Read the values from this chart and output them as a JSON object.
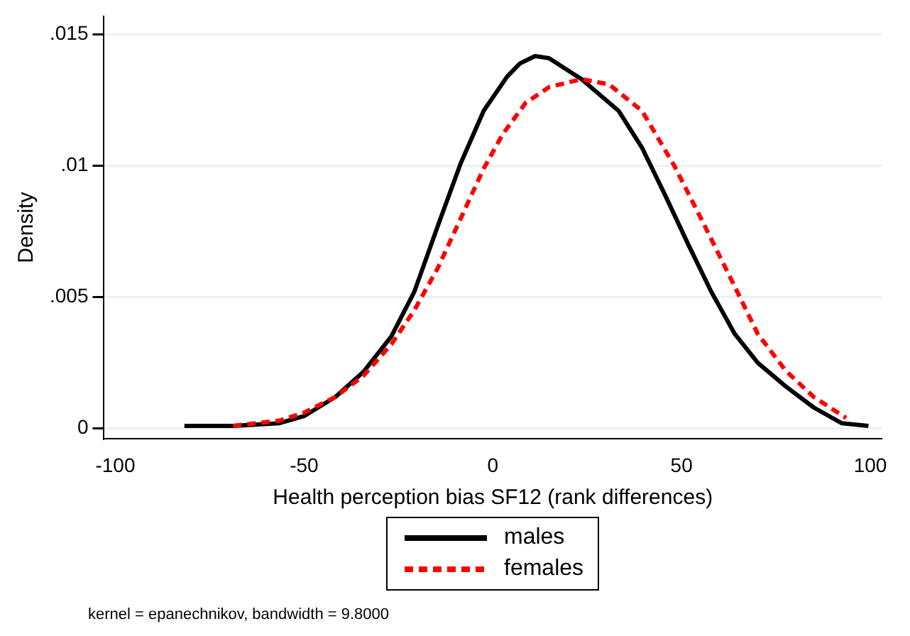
{
  "chart_data": {
    "type": "line",
    "xlabel": "Health perception bias SF12 (rank differences)",
    "ylabel": "Density",
    "xlim": [
      -103,
      103
    ],
    "xticks": [
      -100,
      -50,
      0,
      50,
      100
    ],
    "ylim": [
      -0.0004,
      0.0157
    ],
    "yticks": [
      {
        "value": 0,
        "label": "0"
      },
      {
        "value": 0.005,
        "label": ".005"
      },
      {
        "value": 0.01,
        "label": ".01"
      },
      {
        "value": 0.015,
        "label": ".015"
      }
    ],
    "grid": "y",
    "legend": "bottom",
    "marker": "none",
    "series": [
      {
        "name": "males",
        "color": "#000000",
        "line_style": "solid",
        "x": [
          -81.7,
          -68.8,
          -56.5,
          -50,
          -41.7,
          -34.3,
          -26.9,
          -20.8,
          -14.6,
          -8.5,
          -2.4,
          3.8,
          7.2,
          11.2,
          14.9,
          23.5,
          33.3,
          39.5,
          45.6,
          51.8,
          57.9,
          64.1,
          70.2,
          77.6,
          85,
          92.4,
          99.5
        ],
        "values": [
          0.0001,
          0.0001,
          0.0002,
          0.00047,
          0.0012,
          0.00215,
          0.0035,
          0.0052,
          0.0077,
          0.0101,
          0.0121,
          0.0134,
          0.0139,
          0.01418,
          0.0141,
          0.0133,
          0.0121,
          0.0107,
          0.0089,
          0.007,
          0.0052,
          0.0036,
          0.0025,
          0.0016,
          0.0008,
          0.0002,
          0.0001
        ]
      },
      {
        "name": "females",
        "color": "#ff0000",
        "line_style": "dashed",
        "x": [
          -68.8,
          -56.5,
          -50,
          -41.7,
          -34.3,
          -26.9,
          -20.8,
          -14.6,
          -8.5,
          -2.4,
          2.6,
          8.7,
          14.9,
          23.5,
          30.8,
          39.5,
          48.1,
          55.5,
          64.1,
          70.2,
          77.6,
          85,
          93.6
        ],
        "values": [
          0.0001,
          0.0003,
          0.0006,
          0.0012,
          0.002,
          0.0032,
          0.0045,
          0.0061,
          0.008,
          0.0099,
          0.0112,
          0.0124,
          0.013,
          0.0133,
          0.0131,
          0.0121,
          0.01,
          0.0079,
          0.0054,
          0.0036,
          0.0022,
          0.0012,
          0.0004
        ]
      }
    ],
    "annotations": [
      "kernel = epanechnikov, bandwidth = 9.8000"
    ]
  }
}
